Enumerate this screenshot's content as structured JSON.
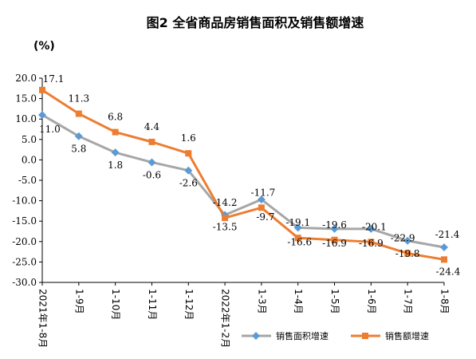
{
  "chart_data": {
    "type": "line",
    "title": "图2 全省商品房销售面积及销售额增速",
    "ylabel": "(%)",
    "ylim": [
      -30,
      20
    ],
    "yticks": [
      "20.0",
      "15.0",
      "10.0",
      "5.0",
      "0.0",
      "-5.0",
      "-10.0",
      "-15.0",
      "-20.0",
      "-25.0",
      "-30.0"
    ],
    "categories": [
      "2021年1-8月",
      "1-9月",
      "1-10月",
      "1-11月",
      "1-12月",
      "2022年1-2月",
      "1-3月",
      "1-4月",
      "1-5月",
      "1-6月",
      "1-7月",
      "1-8月"
    ],
    "series": [
      {
        "name": "销售面积增速",
        "color": "#a6a6a6",
        "marker_color": "#5b9bd5",
        "marker": "diamond",
        "values": [
          11.0,
          5.8,
          1.8,
          -0.6,
          -2.6,
          -13.5,
          -9.7,
          -16.6,
          -16.9,
          -16.9,
          -19.8,
          -21.4
        ],
        "labels": [
          "11.0",
          "5.8",
          "1.8",
          "-0.6",
          "-2.6",
          "-13.5",
          "-9.7",
          "-16.6",
          "-16.9",
          "-16.9",
          "-19.8",
          "-21.4"
        ]
      },
      {
        "name": "销售额增速",
        "color": "#ed7d31",
        "marker": "square",
        "values": [
          17.1,
          11.3,
          6.8,
          4.4,
          1.6,
          -14.2,
          -11.7,
          -19.1,
          -19.6,
          -20.1,
          -22.9,
          -24.4
        ],
        "labels": [
          "17.1",
          "11.3",
          "6.8",
          "4.4",
          "1.6",
          "-14.2",
          "-11.7",
          "-19.1",
          "-19.6",
          "-20.1",
          "-22.9",
          "-24.4"
        ]
      }
    ],
    "legend_position": "bottom-right",
    "grid": false
  }
}
